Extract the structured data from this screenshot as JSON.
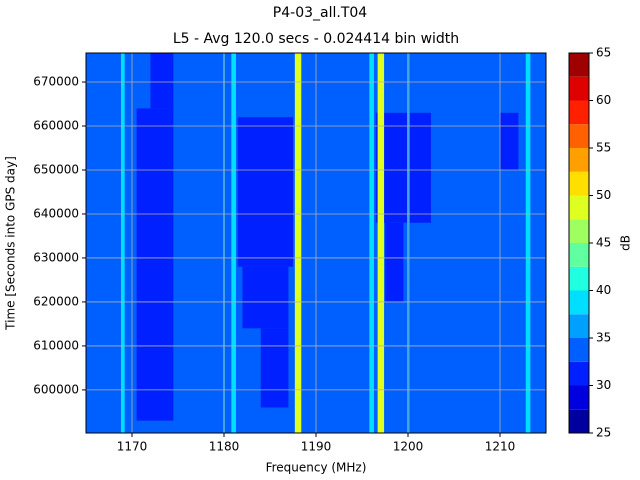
{
  "chart_data": {
    "type": "heatmap",
    "title": "P4-03_all.T04",
    "subtitle": "L5 - Avg 120.0 secs - 0.024414 bin width",
    "x_label": "Frequency (MHz)",
    "y_label": "Time [Seconds into GPS day]",
    "xlim": [
      1165,
      1215
    ],
    "xticks": [
      1170,
      1180,
      1190,
      1200,
      1210
    ],
    "ylim": [
      590200,
      676600
    ],
    "yticks": [
      600000,
      610000,
      620000,
      630000,
      640000,
      650000,
      660000,
      670000
    ],
    "grid": true,
    "background_value": 33.75,
    "cells": [
      {
        "x": [
          1170.5,
          1174.5
        ],
        "y": [
          593000,
          664000
        ],
        "value": 31.25
      },
      {
        "x": [
          1172,
          1174.5
        ],
        "y": [
          664000,
          676600
        ],
        "value": 31.25
      },
      {
        "x": [
          1181.5,
          1187.5
        ],
        "y": [
          628000,
          662000
        ],
        "value": 31.25
      },
      {
        "x": [
          1182,
          1187
        ],
        "y": [
          614000,
          628000
        ],
        "value": 31.25
      },
      {
        "x": [
          1184,
          1187
        ],
        "y": [
          596000,
          614000
        ],
        "value": 31.25
      },
      {
        "x": [
          1196.5,
          1202.5
        ],
        "y": [
          638000,
          663000
        ],
        "value": 31.25
      },
      {
        "x": [
          1197.5,
          1199.5
        ],
        "y": [
          620000,
          638000
        ],
        "value": 31.25
      },
      {
        "x": [
          1210,
          1212
        ],
        "y": [
          650000,
          663000
        ],
        "value": 31.25
      },
      {
        "x": [
          1168.8,
          1169.2
        ],
        "y": [
          590200,
          676600
        ],
        "value": 38.75
      },
      {
        "x": [
          1179.9,
          1180.1
        ],
        "y": [
          590200,
          676600
        ],
        "value": 36.25
      },
      {
        "x": [
          1180.8,
          1181.3
        ],
        "y": [
          590200,
          676600
        ],
        "value": 38.75
      },
      {
        "x": [
          1187.7,
          1188.4
        ],
        "y": [
          590200,
          676600
        ],
        "value": 48.75
      },
      {
        "x": [
          1195.8,
          1196.3
        ],
        "y": [
          590200,
          676600
        ],
        "value": 38.75
      },
      {
        "x": [
          1196.7,
          1197.4
        ],
        "y": [
          590200,
          676600
        ],
        "value": 48.75
      },
      {
        "x": [
          1199.9,
          1200.2
        ],
        "y": [
          590200,
          676600
        ],
        "value": 36.25
      },
      {
        "x": [
          1212.8,
          1213.3
        ],
        "y": [
          590200,
          676600
        ],
        "value": 38.75
      }
    ],
    "colorbar": {
      "label": "dB",
      "levels": [
        25,
        27.5,
        30,
        32.5,
        35,
        37.5,
        40,
        42.5,
        45,
        47.5,
        50,
        52.5,
        55,
        57.5,
        60,
        62.5,
        65
      ],
      "colors": [
        "#00009f",
        "#0000df",
        "#0020ff",
        "#0060ff",
        "#00a0ff",
        "#00dfff",
        "#20ffdf",
        "#60ffa0",
        "#a0ff60",
        "#dfff20",
        "#ffdf00",
        "#ffa000",
        "#ff6000",
        "#ff2000",
        "#df0000",
        "#9f0000"
      ],
      "ticks": [
        25,
        30,
        35,
        40,
        45,
        50,
        55,
        60,
        65
      ]
    }
  }
}
